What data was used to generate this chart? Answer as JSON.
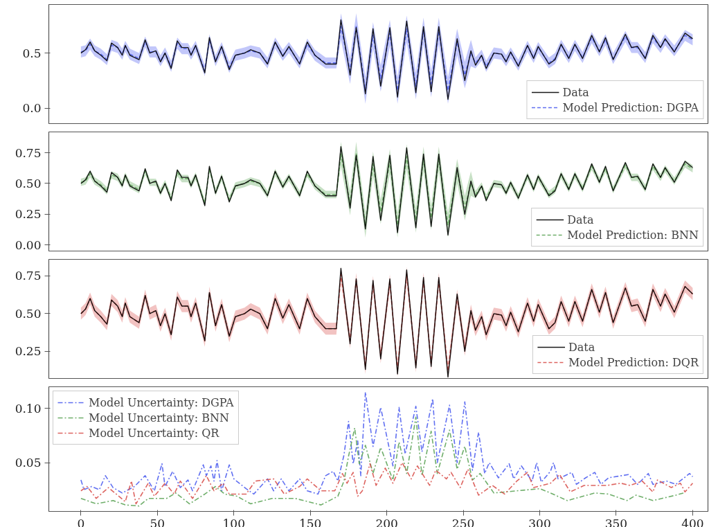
{
  "chart_data": [
    {
      "type": "line",
      "xlim": [
        -21,
        410
      ],
      "ylim": [
        -0.14,
        0.94
      ],
      "xticks": [
        0,
        50,
        100,
        150,
        200,
        250,
        300,
        350,
        400
      ],
      "yticks": [
        {
          "value": 0,
          "label": "0.0"
        },
        {
          "value": 0.5,
          "label": "0.5"
        }
      ],
      "tick_labels": "y",
      "legend": "bottom right",
      "x": [
        0,
        3,
        6,
        9,
        13,
        17,
        20,
        24,
        27,
        29,
        32,
        38,
        42,
        45,
        49,
        52,
        55,
        59,
        63,
        66,
        70,
        72,
        75,
        81,
        84,
        88,
        92,
        97,
        101,
        107,
        111,
        117,
        122,
        127,
        132,
        136,
        143,
        148,
        153,
        160,
        167,
        170,
        176,
        180,
        186,
        191,
        196,
        202,
        207,
        213,
        219,
        224,
        229,
        234,
        240,
        246,
        251,
        255,
        258,
        262,
        265,
        270,
        275,
        278,
        281,
        286,
        292,
        296,
        299,
        306,
        310,
        314,
        319,
        323,
        328,
        334,
        339,
        343,
        348,
        356,
        360,
        364,
        369,
        374,
        379,
        382,
        388,
        395,
        400
      ],
      "series": [
        {
          "name": "Data",
          "color": "#000000",
          "line_style": "solid",
          "values": [
            0.5,
            0.53,
            0.6,
            0.52,
            0.48,
            0.43,
            0.59,
            0.55,
            0.48,
            0.57,
            0.48,
            0.44,
            0.62,
            0.5,
            0.52,
            0.42,
            0.5,
            0.36,
            0.61,
            0.55,
            0.55,
            0.48,
            0.57,
            0.32,
            0.64,
            0.42,
            0.56,
            0.35,
            0.48,
            0.5,
            0.53,
            0.5,
            0.4,
            0.6,
            0.47,
            0.56,
            0.4,
            0.6,
            0.48,
            0.4,
            0.4,
            0.8,
            0.3,
            0.73,
            0.13,
            0.72,
            0.2,
            0.73,
            0.1,
            0.79,
            0.14,
            0.74,
            0.15,
            0.74,
            0.08,
            0.63,
            0.25,
            0.52,
            0.39,
            0.48,
            0.36,
            0.5,
            0.49,
            0.42,
            0.51,
            0.38,
            0.57,
            0.45,
            0.56,
            0.4,
            0.44,
            0.58,
            0.45,
            0.58,
            0.45,
            0.66,
            0.51,
            0.64,
            0.44,
            0.67,
            0.55,
            0.56,
            0.45,
            0.66,
            0.55,
            0.63,
            0.51,
            0.68,
            0.63
          ]
        },
        {
          "name": "Model Prediction: DGPA",
          "color": "#4f5ff0",
          "line_style": "dashed",
          "values": [
            0.51,
            0.52,
            0.58,
            0.52,
            0.49,
            0.44,
            0.57,
            0.55,
            0.49,
            0.56,
            0.49,
            0.45,
            0.6,
            0.51,
            0.51,
            0.43,
            0.5,
            0.38,
            0.59,
            0.54,
            0.54,
            0.49,
            0.56,
            0.34,
            0.62,
            0.43,
            0.55,
            0.37,
            0.48,
            0.5,
            0.52,
            0.5,
            0.41,
            0.59,
            0.48,
            0.55,
            0.41,
            0.58,
            0.48,
            0.41,
            0.41,
            0.74,
            0.34,
            0.74,
            0.16,
            0.66,
            0.27,
            0.68,
            0.16,
            0.72,
            0.2,
            0.7,
            0.22,
            0.7,
            0.16,
            0.6,
            0.3,
            0.5,
            0.41,
            0.48,
            0.38,
            0.5,
            0.49,
            0.43,
            0.5,
            0.39,
            0.56,
            0.46,
            0.55,
            0.41,
            0.45,
            0.57,
            0.46,
            0.57,
            0.46,
            0.64,
            0.52,
            0.62,
            0.45,
            0.65,
            0.55,
            0.55,
            0.46,
            0.64,
            0.55,
            0.62,
            0.52,
            0.66,
            0.62
          ],
          "lower": [
            0.46,
            0.47,
            0.53,
            0.47,
            0.44,
            0.39,
            0.52,
            0.5,
            0.44,
            0.51,
            0.44,
            0.4,
            0.55,
            0.46,
            0.46,
            0.38,
            0.45,
            0.33,
            0.54,
            0.49,
            0.49,
            0.44,
            0.51,
            0.29,
            0.57,
            0.38,
            0.5,
            0.32,
            0.43,
            0.45,
            0.47,
            0.45,
            0.36,
            0.54,
            0.43,
            0.5,
            0.36,
            0.53,
            0.43,
            0.36,
            0.36,
            0.62,
            0.22,
            0.62,
            0.04,
            0.54,
            0.15,
            0.56,
            0.04,
            0.6,
            0.08,
            0.58,
            0.1,
            0.58,
            0.04,
            0.48,
            0.18,
            0.38,
            0.36,
            0.43,
            0.33,
            0.45,
            0.44,
            0.38,
            0.45,
            0.34,
            0.51,
            0.41,
            0.5,
            0.36,
            0.4,
            0.52,
            0.41,
            0.52,
            0.41,
            0.59,
            0.47,
            0.57,
            0.4,
            0.6,
            0.5,
            0.5,
            0.41,
            0.59,
            0.5,
            0.57,
            0.47,
            0.61,
            0.57
          ],
          "upper": [
            0.56,
            0.57,
            0.63,
            0.57,
            0.54,
            0.49,
            0.62,
            0.6,
            0.54,
            0.61,
            0.54,
            0.5,
            0.65,
            0.56,
            0.56,
            0.48,
            0.55,
            0.43,
            0.64,
            0.59,
            0.59,
            0.54,
            0.61,
            0.39,
            0.67,
            0.48,
            0.6,
            0.42,
            0.53,
            0.55,
            0.57,
            0.55,
            0.46,
            0.64,
            0.53,
            0.6,
            0.46,
            0.63,
            0.53,
            0.46,
            0.46,
            0.86,
            0.46,
            0.86,
            0.28,
            0.78,
            0.39,
            0.8,
            0.28,
            0.84,
            0.32,
            0.82,
            0.34,
            0.82,
            0.28,
            0.72,
            0.42,
            0.62,
            0.46,
            0.53,
            0.43,
            0.55,
            0.54,
            0.48,
            0.55,
            0.44,
            0.61,
            0.51,
            0.6,
            0.46,
            0.5,
            0.62,
            0.51,
            0.62,
            0.51,
            0.69,
            0.57,
            0.67,
            0.5,
            0.7,
            0.6,
            0.6,
            0.51,
            0.69,
            0.6,
            0.67,
            0.57,
            0.71,
            0.67
          ]
        }
      ]
    },
    {
      "type": "line",
      "xlim": [
        -21,
        410
      ],
      "ylim": [
        -0.05,
        0.92
      ],
      "xticks": [
        0,
        50,
        100,
        150,
        200,
        250,
        300,
        350,
        400
      ],
      "yticks": [
        {
          "value": 0,
          "label": "0.00"
        },
        {
          "value": 0.25,
          "label": "0.25"
        },
        {
          "value": 0.5,
          "label": "0.50"
        },
        {
          "value": 0.75,
          "label": "0.75"
        }
      ],
      "tick_labels": "y",
      "legend": "bottom right",
      "x": [
        0,
        3,
        6,
        9,
        13,
        17,
        20,
        24,
        27,
        29,
        32,
        38,
        42,
        45,
        49,
        52,
        55,
        59,
        63,
        66,
        70,
        72,
        75,
        81,
        84,
        88,
        92,
        97,
        101,
        107,
        111,
        117,
        122,
        127,
        132,
        136,
        143,
        148,
        153,
        160,
        167,
        170,
        176,
        180,
        186,
        191,
        196,
        202,
        207,
        213,
        219,
        224,
        229,
        234,
        240,
        246,
        251,
        255,
        258,
        262,
        265,
        270,
        275,
        278,
        281,
        286,
        292,
        296,
        299,
        306,
        310,
        314,
        319,
        323,
        328,
        334,
        339,
        343,
        348,
        356,
        360,
        364,
        369,
        374,
        379,
        382,
        388,
        395,
        400
      ],
      "series": [
        {
          "name": "Data",
          "color": "#000000",
          "line_style": "solid",
          "values": [
            0.5,
            0.53,
            0.6,
            0.52,
            0.48,
            0.43,
            0.59,
            0.55,
            0.48,
            0.57,
            0.48,
            0.44,
            0.62,
            0.5,
            0.52,
            0.42,
            0.5,
            0.36,
            0.61,
            0.55,
            0.55,
            0.48,
            0.57,
            0.32,
            0.64,
            0.42,
            0.56,
            0.35,
            0.48,
            0.5,
            0.53,
            0.5,
            0.4,
            0.6,
            0.47,
            0.56,
            0.4,
            0.6,
            0.48,
            0.4,
            0.4,
            0.8,
            0.3,
            0.73,
            0.13,
            0.72,
            0.2,
            0.73,
            0.1,
            0.79,
            0.14,
            0.74,
            0.15,
            0.74,
            0.08,
            0.63,
            0.25,
            0.52,
            0.39,
            0.48,
            0.36,
            0.5,
            0.49,
            0.42,
            0.51,
            0.38,
            0.57,
            0.45,
            0.56,
            0.4,
            0.44,
            0.58,
            0.45,
            0.58,
            0.45,
            0.66,
            0.51,
            0.64,
            0.44,
            0.67,
            0.55,
            0.56,
            0.45,
            0.66,
            0.55,
            0.63,
            0.51,
            0.68,
            0.63
          ]
        },
        {
          "name": "Model Prediction: BNN",
          "color": "#5fa55a",
          "line_style": "dashed",
          "values": [
            0.51,
            0.52,
            0.58,
            0.52,
            0.49,
            0.44,
            0.57,
            0.55,
            0.49,
            0.56,
            0.49,
            0.45,
            0.6,
            0.51,
            0.51,
            0.43,
            0.5,
            0.38,
            0.59,
            0.54,
            0.54,
            0.49,
            0.56,
            0.34,
            0.62,
            0.43,
            0.55,
            0.37,
            0.48,
            0.5,
            0.52,
            0.5,
            0.41,
            0.59,
            0.48,
            0.55,
            0.41,
            0.58,
            0.48,
            0.41,
            0.41,
            0.74,
            0.34,
            0.74,
            0.16,
            0.66,
            0.27,
            0.68,
            0.16,
            0.72,
            0.2,
            0.7,
            0.22,
            0.7,
            0.16,
            0.6,
            0.3,
            0.5,
            0.41,
            0.48,
            0.38,
            0.5,
            0.49,
            0.43,
            0.5,
            0.39,
            0.56,
            0.46,
            0.55,
            0.41,
            0.45,
            0.57,
            0.46,
            0.57,
            0.46,
            0.64,
            0.52,
            0.62,
            0.45,
            0.65,
            0.55,
            0.55,
            0.46,
            0.64,
            0.55,
            0.62,
            0.52,
            0.66,
            0.62
          ],
          "lower": [
            0.48,
            0.49,
            0.55,
            0.49,
            0.46,
            0.41,
            0.54,
            0.52,
            0.46,
            0.53,
            0.46,
            0.42,
            0.57,
            0.48,
            0.48,
            0.4,
            0.47,
            0.35,
            0.56,
            0.51,
            0.51,
            0.46,
            0.53,
            0.31,
            0.59,
            0.4,
            0.52,
            0.34,
            0.45,
            0.47,
            0.49,
            0.47,
            0.38,
            0.56,
            0.45,
            0.52,
            0.38,
            0.55,
            0.45,
            0.38,
            0.38,
            0.64,
            0.24,
            0.64,
            0.06,
            0.56,
            0.17,
            0.58,
            0.06,
            0.62,
            0.1,
            0.6,
            0.12,
            0.6,
            0.06,
            0.5,
            0.2,
            0.4,
            0.38,
            0.45,
            0.35,
            0.47,
            0.46,
            0.4,
            0.47,
            0.36,
            0.53,
            0.43,
            0.52,
            0.38,
            0.42,
            0.54,
            0.43,
            0.54,
            0.43,
            0.61,
            0.49,
            0.59,
            0.42,
            0.62,
            0.52,
            0.52,
            0.43,
            0.61,
            0.52,
            0.59,
            0.49,
            0.63,
            0.59
          ],
          "upper": [
            0.54,
            0.55,
            0.61,
            0.55,
            0.52,
            0.47,
            0.6,
            0.58,
            0.52,
            0.59,
            0.52,
            0.48,
            0.63,
            0.54,
            0.54,
            0.46,
            0.53,
            0.41,
            0.62,
            0.57,
            0.57,
            0.52,
            0.59,
            0.37,
            0.65,
            0.46,
            0.58,
            0.4,
            0.51,
            0.53,
            0.55,
            0.53,
            0.44,
            0.62,
            0.51,
            0.58,
            0.44,
            0.61,
            0.51,
            0.44,
            0.44,
            0.84,
            0.44,
            0.84,
            0.26,
            0.76,
            0.37,
            0.78,
            0.26,
            0.82,
            0.3,
            0.8,
            0.32,
            0.8,
            0.26,
            0.7,
            0.4,
            0.6,
            0.44,
            0.51,
            0.41,
            0.53,
            0.52,
            0.46,
            0.53,
            0.42,
            0.59,
            0.49,
            0.58,
            0.44,
            0.48,
            0.6,
            0.49,
            0.6,
            0.49,
            0.67,
            0.55,
            0.65,
            0.48,
            0.68,
            0.58,
            0.58,
            0.49,
            0.67,
            0.58,
            0.65,
            0.55,
            0.69,
            0.65
          ]
        }
      ]
    },
    {
      "type": "line",
      "xlim": [
        -21,
        410
      ],
      "ylim": [
        0.07,
        0.86
      ],
      "xticks": [
        0,
        50,
        100,
        150,
        200,
        250,
        300,
        350,
        400
      ],
      "yticks": [
        {
          "value": 0.25,
          "label": "0.25"
        },
        {
          "value": 0.5,
          "label": "0.50"
        },
        {
          "value": 0.75,
          "label": "0.75"
        }
      ],
      "tick_labels": "y",
      "legend": "bottom right",
      "x": [
        0,
        3,
        6,
        9,
        13,
        17,
        20,
        24,
        27,
        29,
        32,
        38,
        42,
        45,
        49,
        52,
        55,
        59,
        63,
        66,
        70,
        72,
        75,
        81,
        84,
        88,
        92,
        97,
        101,
        107,
        111,
        117,
        122,
        127,
        132,
        136,
        143,
        148,
        153,
        160,
        167,
        170,
        176,
        180,
        186,
        191,
        196,
        202,
        207,
        213,
        219,
        224,
        229,
        234,
        240,
        246,
        251,
        255,
        258,
        262,
        265,
        270,
        275,
        278,
        281,
        286,
        292,
        296,
        299,
        306,
        310,
        314,
        319,
        323,
        328,
        334,
        339,
        343,
        348,
        356,
        360,
        364,
        369,
        374,
        379,
        382,
        388,
        395,
        400
      ],
      "series": [
        {
          "name": "Data",
          "color": "#000000",
          "line_style": "solid",
          "values": [
            0.5,
            0.53,
            0.6,
            0.52,
            0.48,
            0.43,
            0.59,
            0.55,
            0.48,
            0.57,
            0.48,
            0.44,
            0.62,
            0.5,
            0.52,
            0.42,
            0.5,
            0.36,
            0.61,
            0.55,
            0.55,
            0.48,
            0.57,
            0.32,
            0.64,
            0.42,
            0.56,
            0.35,
            0.48,
            0.5,
            0.53,
            0.5,
            0.4,
            0.6,
            0.47,
            0.56,
            0.4,
            0.6,
            0.48,
            0.4,
            0.4,
            0.8,
            0.3,
            0.73,
            0.13,
            0.72,
            0.2,
            0.73,
            0.1,
            0.79,
            0.14,
            0.74,
            0.15,
            0.74,
            0.08,
            0.63,
            0.25,
            0.52,
            0.39,
            0.48,
            0.36,
            0.5,
            0.49,
            0.42,
            0.51,
            0.38,
            0.57,
            0.45,
            0.56,
            0.4,
            0.44,
            0.58,
            0.45,
            0.58,
            0.45,
            0.66,
            0.51,
            0.64,
            0.44,
            0.67,
            0.55,
            0.56,
            0.45,
            0.66,
            0.55,
            0.63,
            0.51,
            0.68,
            0.63
          ]
        },
        {
          "name": "Model Prediction: DQR",
          "color": "#d9534f",
          "line_style": "dashed",
          "values": [
            0.5,
            0.53,
            0.6,
            0.52,
            0.48,
            0.43,
            0.59,
            0.55,
            0.48,
            0.57,
            0.48,
            0.44,
            0.62,
            0.5,
            0.52,
            0.42,
            0.5,
            0.36,
            0.61,
            0.55,
            0.55,
            0.48,
            0.57,
            0.32,
            0.64,
            0.42,
            0.56,
            0.35,
            0.48,
            0.5,
            0.53,
            0.5,
            0.4,
            0.6,
            0.47,
            0.56,
            0.4,
            0.6,
            0.48,
            0.4,
            0.4,
            0.76,
            0.32,
            0.72,
            0.15,
            0.7,
            0.22,
            0.71,
            0.13,
            0.76,
            0.16,
            0.72,
            0.17,
            0.72,
            0.12,
            0.61,
            0.27,
            0.51,
            0.39,
            0.48,
            0.36,
            0.5,
            0.49,
            0.42,
            0.51,
            0.38,
            0.57,
            0.45,
            0.56,
            0.4,
            0.44,
            0.58,
            0.45,
            0.58,
            0.45,
            0.66,
            0.51,
            0.64,
            0.44,
            0.67,
            0.55,
            0.56,
            0.45,
            0.66,
            0.55,
            0.63,
            0.51,
            0.68,
            0.63
          ],
          "lower": [
            0.46,
            0.49,
            0.56,
            0.48,
            0.44,
            0.39,
            0.55,
            0.51,
            0.44,
            0.53,
            0.44,
            0.4,
            0.58,
            0.46,
            0.48,
            0.38,
            0.46,
            0.32,
            0.57,
            0.51,
            0.51,
            0.44,
            0.53,
            0.28,
            0.6,
            0.38,
            0.52,
            0.31,
            0.44,
            0.46,
            0.49,
            0.46,
            0.36,
            0.56,
            0.43,
            0.52,
            0.36,
            0.56,
            0.44,
            0.36,
            0.36,
            0.71,
            0.27,
            0.67,
            0.1,
            0.65,
            0.17,
            0.66,
            0.08,
            0.71,
            0.11,
            0.67,
            0.12,
            0.67,
            0.07,
            0.56,
            0.22,
            0.46,
            0.35,
            0.44,
            0.32,
            0.46,
            0.45,
            0.38,
            0.47,
            0.34,
            0.53,
            0.41,
            0.52,
            0.36,
            0.4,
            0.54,
            0.41,
            0.54,
            0.41,
            0.62,
            0.47,
            0.6,
            0.4,
            0.63,
            0.51,
            0.52,
            0.41,
            0.62,
            0.51,
            0.59,
            0.47,
            0.64,
            0.59
          ],
          "upper": [
            0.54,
            0.57,
            0.64,
            0.56,
            0.52,
            0.47,
            0.63,
            0.59,
            0.52,
            0.61,
            0.52,
            0.48,
            0.66,
            0.54,
            0.56,
            0.46,
            0.54,
            0.4,
            0.65,
            0.59,
            0.59,
            0.52,
            0.61,
            0.36,
            0.68,
            0.46,
            0.6,
            0.39,
            0.52,
            0.54,
            0.57,
            0.54,
            0.44,
            0.64,
            0.51,
            0.6,
            0.44,
            0.64,
            0.52,
            0.44,
            0.44,
            0.81,
            0.37,
            0.77,
            0.2,
            0.75,
            0.27,
            0.76,
            0.18,
            0.81,
            0.21,
            0.77,
            0.22,
            0.77,
            0.17,
            0.66,
            0.32,
            0.56,
            0.43,
            0.52,
            0.4,
            0.54,
            0.53,
            0.46,
            0.55,
            0.42,
            0.61,
            0.49,
            0.6,
            0.44,
            0.48,
            0.62,
            0.49,
            0.62,
            0.49,
            0.7,
            0.55,
            0.68,
            0.48,
            0.71,
            0.59,
            0.6,
            0.49,
            0.7,
            0.59,
            0.67,
            0.55,
            0.72,
            0.67
          ]
        }
      ]
    },
    {
      "type": "line",
      "xlim": [
        -21,
        410
      ],
      "ylim": [
        0.005,
        0.12
      ],
      "xticks": [
        0,
        50,
        100,
        150,
        200,
        250,
        300,
        350,
        400
      ],
      "yticks": [
        {
          "value": 0.05,
          "label": "0.05"
        },
        {
          "value": 0.1,
          "label": "0.10"
        }
      ],
      "legend": "top left",
      "series": [
        {
          "name": "Model Uncertainty: DGPA",
          "color": "#4f5ff0",
          "line_style": "dashdot",
          "x": [
            0,
            2,
            7,
            12,
            16,
            21,
            27,
            35,
            42,
            48,
            53,
            55,
            60,
            65,
            70,
            73,
            80,
            82,
            85,
            87,
            89,
            92,
            97,
            100,
            108,
            113,
            122,
            126,
            131,
            136,
            143,
            148,
            155,
            160,
            165,
            168,
            172,
            175,
            178,
            181,
            183,
            186,
            191,
            196,
            204,
            208,
            212,
            219,
            223,
            230,
            233,
            241,
            246,
            251,
            256,
            260,
            264,
            267,
            273,
            280,
            283,
            288,
            295,
            298,
            301,
            307,
            309,
            312,
            321,
            324,
            330,
            336,
            340,
            345,
            358,
            364,
            371,
            374,
            383,
            389,
            398,
            400
          ],
          "values": [
            0.034,
            0.025,
            0.028,
            0.025,
            0.038,
            0.027,
            0.022,
            0.028,
            0.038,
            0.024,
            0.049,
            0.028,
            0.042,
            0.027,
            0.034,
            0.024,
            0.048,
            0.038,
            0.047,
            0.033,
            0.052,
            0.024,
            0.048,
            0.035,
            0.026,
            0.021,
            0.035,
            0.024,
            0.035,
            0.024,
            0.035,
            0.024,
            0.021,
            0.038,
            0.042,
            0.033,
            0.057,
            0.088,
            0.049,
            0.07,
            0.038,
            0.115,
            0.065,
            0.101,
            0.047,
            0.101,
            0.058,
            0.102,
            0.06,
            0.109,
            0.05,
            0.103,
            0.05,
            0.106,
            0.043,
            0.078,
            0.04,
            0.05,
            0.036,
            0.049,
            0.035,
            0.047,
            0.033,
            0.05,
            0.032,
            0.042,
            0.05,
            0.035,
            0.041,
            0.03,
            0.036,
            0.041,
            0.03,
            0.036,
            0.039,
            0.03,
            0.04,
            0.03,
            0.033,
            0.03,
            0.04,
            0.037
          ]
        },
        {
          "name": "Model Uncertainty: BNN",
          "color": "#5fa55a",
          "line_style": "dashdot",
          "x": [
            0,
            10,
            21,
            29,
            38,
            44,
            56,
            62,
            71,
            81,
            88,
            94,
            102,
            111,
            125,
            140,
            157,
            168,
            172,
            175,
            179,
            182,
            186,
            191,
            196,
            204,
            208,
            213,
            219,
            223,
            229,
            233,
            241,
            246,
            251,
            256,
            261,
            270,
            285,
            300,
            307,
            318,
            336,
            345,
            357,
            363,
            374,
            389,
            394
          ],
          "values": [
            0.017,
            0.012,
            0.015,
            0.011,
            0.01,
            0.017,
            0.017,
            0.022,
            0.012,
            0.021,
            0.028,
            0.021,
            0.019,
            0.012,
            0.017,
            0.017,
            0.011,
            0.019,
            0.033,
            0.056,
            0.082,
            0.049,
            0.066,
            0.04,
            0.064,
            0.034,
            0.069,
            0.04,
            0.092,
            0.038,
            0.079,
            0.04,
            0.08,
            0.044,
            0.065,
            0.034,
            0.04,
            0.022,
            0.024,
            0.026,
            0.022,
            0.015,
            0.022,
            0.021,
            0.015,
            0.02,
            0.015,
            0.02,
            0.022
          ]
        },
        {
          "name": "Model Uncertainty: QR",
          "color": "#d9534f",
          "line_style": "dashdot",
          "x": [
            0,
            4,
            10,
            18,
            29,
            33,
            36,
            44,
            48,
            55,
            61,
            65,
            73,
            82,
            87,
            93,
            97,
            108,
            114,
            126,
            133,
            143,
            148,
            157,
            166,
            171,
            174,
            178,
            181,
            184,
            189,
            193,
            199,
            204,
            210,
            216,
            220,
            228,
            232,
            239,
            242,
            248,
            253,
            260,
            269,
            277,
            285,
            292,
            296,
            307,
            313,
            320,
            329,
            337,
            344,
            353,
            359,
            367,
            374,
            377,
            386,
            392,
            395,
            400
          ],
          "values": [
            0.024,
            0.028,
            0.017,
            0.027,
            0.014,
            0.033,
            0.012,
            0.031,
            0.019,
            0.031,
            0.021,
            0.033,
            0.017,
            0.038,
            0.024,
            0.031,
            0.021,
            0.021,
            0.033,
            0.035,
            0.021,
            0.028,
            0.035,
            0.024,
            0.024,
            0.04,
            0.031,
            0.041,
            0.019,
            0.024,
            0.049,
            0.029,
            0.045,
            0.031,
            0.05,
            0.035,
            0.047,
            0.029,
            0.043,
            0.035,
            0.041,
            0.027,
            0.044,
            0.02,
            0.029,
            0.021,
            0.033,
            0.041,
            0.027,
            0.031,
            0.039,
            0.023,
            0.029,
            0.029,
            0.029,
            0.031,
            0.029,
            0.033,
            0.023,
            0.034,
            0.027,
            0.031,
            0.023,
            0.031
          ]
        }
      ]
    }
  ]
}
